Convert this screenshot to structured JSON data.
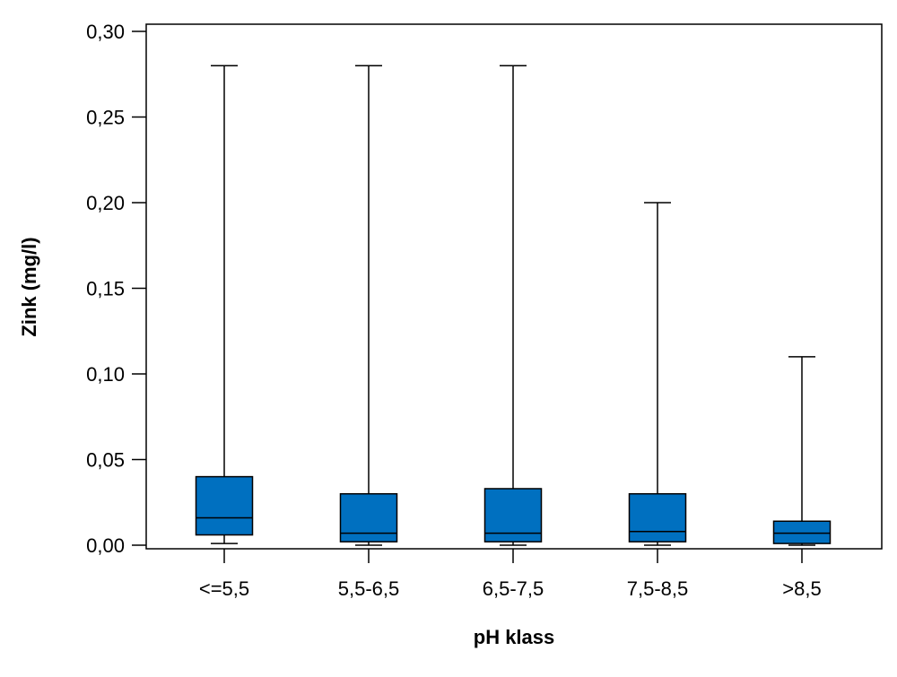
{
  "chart_data": {
    "type": "boxplot",
    "title": "",
    "xlabel": "pH klass",
    "ylabel": "Zink (mg/l)",
    "ylim": [
      0,
      0.3
    ],
    "yticks": [
      0.0,
      0.05,
      0.1,
      0.15,
      0.2,
      0.25,
      0.3
    ],
    "ytick_labels": [
      "0,00",
      "0,05",
      "0,10",
      "0,15",
      "0,20",
      "0,25",
      "0,30"
    ],
    "categories": [
      "<=5,5",
      "5,5-6,5",
      "6,5-7,5",
      "7,5-8,5",
      ">8,5"
    ],
    "boxes": [
      {
        "category": "<=5,5",
        "min": 0.001,
        "q1": 0.006,
        "median": 0.016,
        "q3": 0.04,
        "max": 0.28
      },
      {
        "category": "5,5-6,5",
        "min": 0.0,
        "q1": 0.002,
        "median": 0.007,
        "q3": 0.03,
        "max": 0.28
      },
      {
        "category": "6,5-7,5",
        "min": 0.0,
        "q1": 0.002,
        "median": 0.007,
        "q3": 0.033,
        "max": 0.28
      },
      {
        "category": "7,5-8,5",
        "min": 0.0,
        "q1": 0.002,
        "median": 0.008,
        "q3": 0.03,
        "max": 0.2
      },
      {
        "category": ">8,5",
        "min": 0.0,
        "q1": 0.001,
        "median": 0.007,
        "q3": 0.014,
        "max": 0.11
      }
    ],
    "box_color": "#0070C0",
    "grid": false,
    "legend": "none"
  }
}
